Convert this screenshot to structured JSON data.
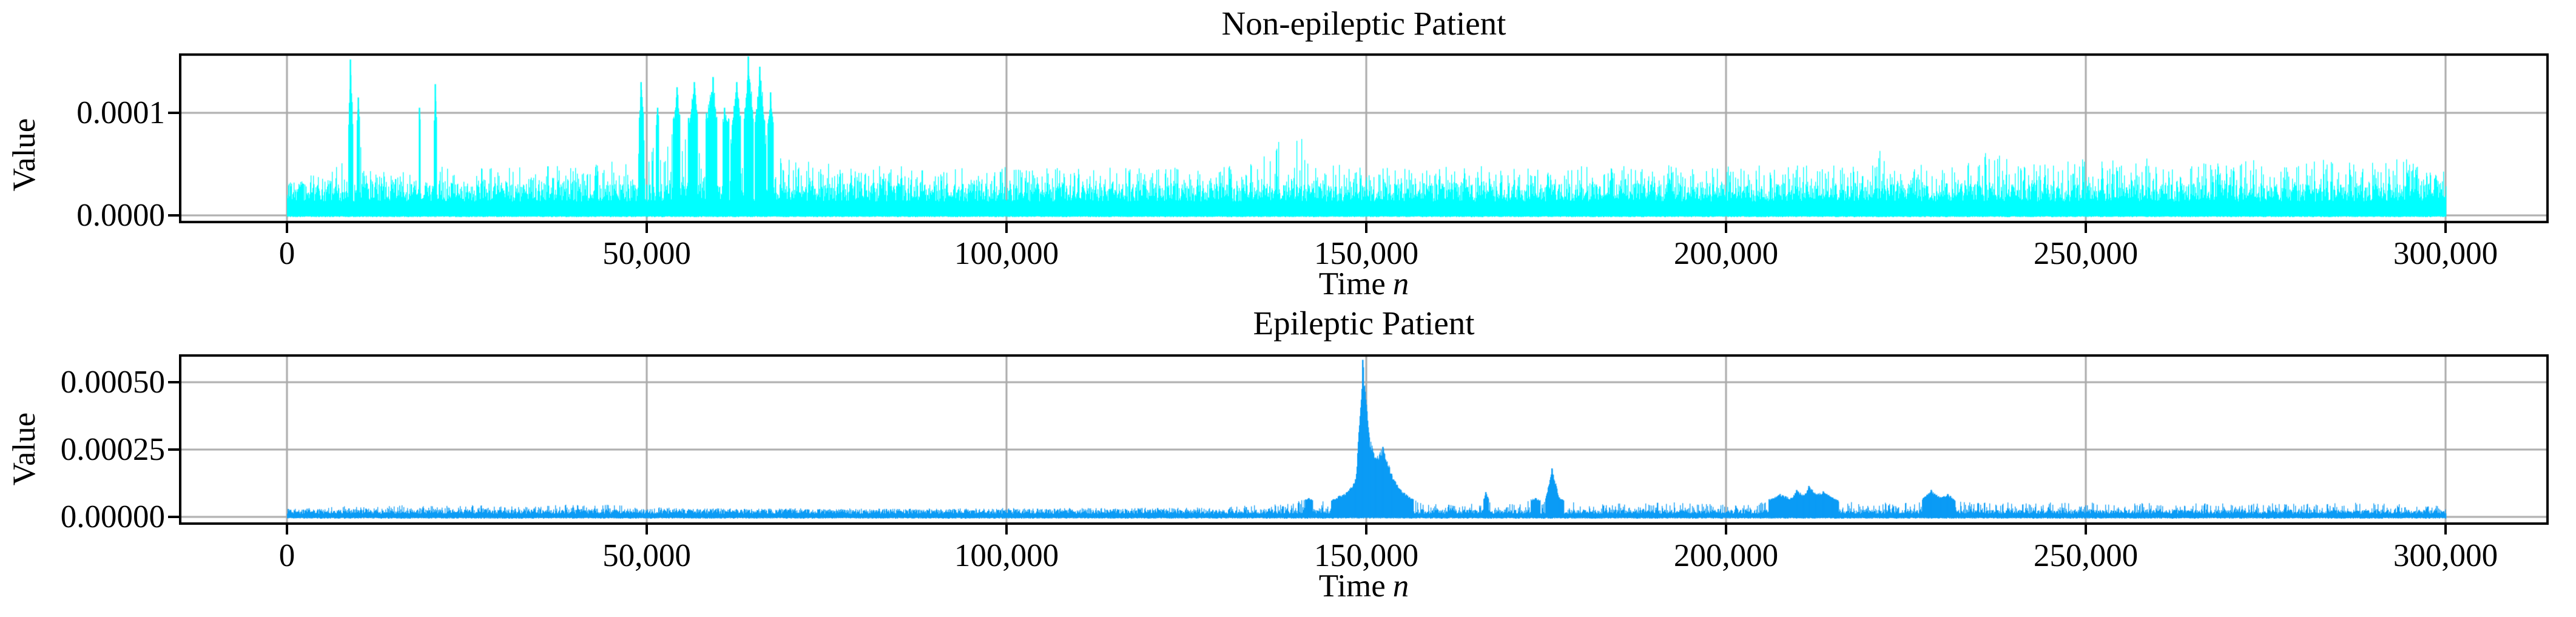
{
  "figure": {
    "background": "#ffffff"
  },
  "chart_data": [
    {
      "type": "line",
      "title": "Non-epileptic Patient",
      "xlabel_prefix": "Time",
      "xlabel_var": "n",
      "ylabel": "Value",
      "x_tick_values": [
        0,
        50000,
        100000,
        150000,
        200000,
        250000,
        300000
      ],
      "x_tick_labels": [
        "0",
        "50,000",
        "100,000",
        "150,000",
        "200,000",
        "250,000",
        "300,000"
      ],
      "y_tick_values": [
        0,
        0.0001
      ],
      "y_tick_labels": [
        "0.0000",
        "0.0001"
      ],
      "xlim": [
        -15000,
        314300
      ],
      "ylim": [
        -7.7e-06,
        0.000158
      ],
      "grid": true,
      "legend": "none",
      "signal_color": "#00FFFF",
      "grid_color": "#ababab",
      "spine_color": "#000000",
      "value_scale": 0.0001,
      "baseline_1e4": 0.3,
      "solid_above_1e4": 0.95,
      "envelope_1e4": [
        [
          0,
          0.42
        ],
        [
          2000,
          0.38
        ],
        [
          5000,
          0.42
        ],
        [
          8300,
          0.55
        ],
        [
          8800,
          1.52
        ],
        [
          9300,
          0.65
        ],
        [
          9900,
          1.15
        ],
        [
          10400,
          0.5
        ],
        [
          12000,
          0.45
        ],
        [
          14500,
          0.42
        ],
        [
          17900,
          0.5
        ],
        [
          18400,
          1.05
        ],
        [
          18900,
          0.5
        ],
        [
          20100,
          0.55
        ],
        [
          20600,
          1.28
        ],
        [
          21100,
          0.5
        ],
        [
          23000,
          0.46
        ],
        [
          26000,
          0.52
        ],
        [
          29000,
          0.46
        ],
        [
          32000,
          0.52
        ],
        [
          35000,
          0.47
        ],
        [
          38000,
          0.5
        ],
        [
          41000,
          0.46
        ],
        [
          44000,
          0.52
        ],
        [
          46500,
          0.56
        ],
        [
          48500,
          0.6
        ],
        [
          49200,
          1.3
        ],
        [
          49900,
          0.6
        ],
        [
          50800,
          0.8
        ],
        [
          51500,
          1.05
        ],
        [
          52300,
          0.6
        ],
        [
          53300,
          0.8
        ],
        [
          54200,
          1.25
        ],
        [
          55000,
          0.7
        ],
        [
          55800,
          0.95
        ],
        [
          56600,
          1.3
        ],
        [
          57400,
          0.7
        ],
        [
          58300,
          1.0
        ],
        [
          59200,
          1.35
        ],
        [
          60000,
          0.75
        ],
        [
          60800,
          1.05
        ],
        [
          61700,
          0.9
        ],
        [
          62500,
          1.3
        ],
        [
          63300,
          0.8
        ],
        [
          64100,
          1.55
        ],
        [
          64900,
          0.9
        ],
        [
          65700,
          1.45
        ],
        [
          66500,
          0.85
        ],
        [
          67200,
          1.2
        ],
        [
          68000,
          0.7
        ],
        [
          69000,
          0.6
        ],
        [
          70500,
          0.55
        ],
        [
          73000,
          0.52
        ],
        [
          76000,
          0.5
        ],
        [
          80000,
          0.46
        ],
        [
          84000,
          0.5
        ],
        [
          88000,
          0.45
        ],
        [
          92000,
          0.49
        ],
        [
          96000,
          0.45
        ],
        [
          100000,
          0.5
        ],
        [
          104000,
          0.46
        ],
        [
          108000,
          0.5
        ],
        [
          112000,
          0.45
        ],
        [
          116000,
          0.48
        ],
        [
          120000,
          0.46
        ],
        [
          124000,
          0.5
        ],
        [
          128000,
          0.46
        ],
        [
          132000,
          0.5
        ],
        [
          134500,
          0.55
        ],
        [
          136500,
          0.6
        ],
        [
          137500,
          0.8
        ],
        [
          138500,
          0.7
        ],
        [
          139500,
          0.92
        ],
        [
          140500,
          0.75
        ],
        [
          141500,
          0.85
        ],
        [
          142500,
          0.6
        ],
        [
          144000,
          0.55
        ],
        [
          146500,
          0.52
        ],
        [
          149000,
          0.5
        ],
        [
          152000,
          0.47
        ],
        [
          155000,
          0.5
        ],
        [
          158000,
          0.46
        ],
        [
          161000,
          0.49
        ],
        [
          164000,
          0.46
        ],
        [
          167700,
          0.5
        ],
        [
          168200,
          0.85
        ],
        [
          168700,
          0.5
        ],
        [
          171000,
          0.47
        ],
        [
          174000,
          0.5
        ],
        [
          177000,
          0.46
        ],
        [
          180000,
          0.49
        ],
        [
          183000,
          0.45
        ],
        [
          186000,
          0.49
        ],
        [
          189000,
          0.45
        ],
        [
          192000,
          0.5
        ],
        [
          195000,
          0.46
        ],
        [
          198000,
          0.5
        ],
        [
          201000,
          0.47
        ],
        [
          204000,
          0.51
        ],
        [
          207000,
          0.47
        ],
        [
          210000,
          0.5
        ],
        [
          213000,
          0.47
        ],
        [
          216000,
          0.52
        ],
        [
          219000,
          0.49
        ],
        [
          221000,
          0.5
        ],
        [
          221500,
          0.76
        ],
        [
          222000,
          0.5
        ],
        [
          224500,
          0.48
        ],
        [
          227000,
          0.5
        ],
        [
          229500,
          0.47
        ],
        [
          232000,
          0.52
        ],
        [
          234500,
          0.56
        ],
        [
          236000,
          0.62
        ],
        [
          238500,
          0.58
        ],
        [
          241000,
          0.5
        ],
        [
          243500,
          0.55
        ],
        [
          246000,
          0.5
        ],
        [
          248500,
          0.58
        ],
        [
          251000,
          0.52
        ],
        [
          253500,
          0.56
        ],
        [
          256000,
          0.5
        ],
        [
          258500,
          0.58
        ],
        [
          261000,
          0.52
        ],
        [
          263500,
          0.55
        ],
        [
          266000,
          0.5
        ],
        [
          268500,
          0.56
        ],
        [
          271000,
          0.5
        ],
        [
          273500,
          0.56
        ],
        [
          276000,
          0.52
        ],
        [
          278500,
          0.58
        ],
        [
          281000,
          0.52
        ],
        [
          283500,
          0.56
        ],
        [
          286000,
          0.52
        ],
        [
          288500,
          0.56
        ],
        [
          291000,
          0.52
        ],
        [
          293500,
          0.58
        ],
        [
          296000,
          0.5
        ],
        [
          298000,
          0.46
        ],
        [
          300000,
          0.44
        ]
      ]
    },
    {
      "type": "line",
      "title": "Epileptic Patient",
      "xlabel_prefix": "Time",
      "xlabel_var": "n",
      "ylabel": "Value",
      "x_tick_values": [
        0,
        50000,
        100000,
        150000,
        200000,
        250000,
        300000
      ],
      "x_tick_labels": [
        "0",
        "50,000",
        "100,000",
        "150,000",
        "200,000",
        "250,000",
        "300,000"
      ],
      "y_tick_values": [
        0,
        0.00025,
        0.0005
      ],
      "y_tick_labels": [
        "0.00000",
        "0.00025",
        "0.00050"
      ],
      "xlim": [
        -15000,
        314300
      ],
      "ylim": [
        -2.93e-05,
        0.000604
      ],
      "grid": true,
      "legend": "none",
      "signal_color": "#0A9BF5",
      "grid_color": "#ababab",
      "spine_color": "#000000",
      "value_scale": 0.0001,
      "baseline_1e4": 0.26,
      "solid_above_1e4": 0.66,
      "envelope_1e4": [
        [
          0,
          0.3
        ],
        [
          4000,
          0.34
        ],
        [
          8000,
          0.4
        ],
        [
          12000,
          0.36
        ],
        [
          16000,
          0.44
        ],
        [
          20000,
          0.4
        ],
        [
          24000,
          0.46
        ],
        [
          28000,
          0.42
        ],
        [
          31000,
          0.4
        ],
        [
          34000,
          0.38
        ],
        [
          37000,
          0.42
        ],
        [
          39000,
          0.55
        ],
        [
          39800,
          0.45
        ],
        [
          43000,
          0.42
        ],
        [
          46000,
          0.48
        ],
        [
          49000,
          0.4
        ],
        [
          52000,
          0.36
        ],
        [
          56000,
          0.33
        ],
        [
          60000,
          0.32
        ],
        [
          65000,
          0.3
        ],
        [
          70000,
          0.32
        ],
        [
          75000,
          0.3
        ],
        [
          80000,
          0.32
        ],
        [
          85000,
          0.3
        ],
        [
          90000,
          0.33
        ],
        [
          95000,
          0.31
        ],
        [
          100000,
          0.33
        ],
        [
          105000,
          0.31
        ],
        [
          110000,
          0.34
        ],
        [
          115000,
          0.32
        ],
        [
          120000,
          0.35
        ],
        [
          125000,
          0.34
        ],
        [
          129000,
          0.38
        ],
        [
          133000,
          0.42
        ],
        [
          137000,
          0.46
        ],
        [
          140000,
          0.55
        ],
        [
          142000,
          0.7
        ],
        [
          143500,
          0.58
        ],
        [
          145000,
          0.65
        ],
        [
          146200,
          0.78
        ],
        [
          147300,
          0.92
        ],
        [
          148500,
          1.4
        ],
        [
          149500,
          5.83
        ],
        [
          150400,
          2.95
        ],
        [
          151300,
          2.2
        ],
        [
          152300,
          2.6
        ],
        [
          153500,
          1.6
        ],
        [
          154800,
          1.0
        ],
        [
          156300,
          0.68
        ],
        [
          158000,
          0.52
        ],
        [
          160500,
          0.45
        ],
        [
          163500,
          0.48
        ],
        [
          166000,
          0.52
        ],
        [
          166600,
          0.92
        ],
        [
          167200,
          0.52
        ],
        [
          169500,
          0.5
        ],
        [
          171500,
          0.58
        ],
        [
          173500,
          0.7
        ],
        [
          174800,
          0.62
        ],
        [
          175800,
          1.8
        ],
        [
          176800,
          0.72
        ],
        [
          178500,
          0.56
        ],
        [
          181000,
          0.48
        ],
        [
          184000,
          0.52
        ],
        [
          187000,
          0.48
        ],
        [
          190000,
          0.53
        ],
        [
          193000,
          0.56
        ],
        [
          196000,
          0.5
        ],
        [
          199000,
          0.46
        ],
        [
          202000,
          0.5
        ],
        [
          205000,
          0.56
        ],
        [
          207500,
          0.85
        ],
        [
          209000,
          0.7
        ],
        [
          209800,
          1.0
        ],
        [
          210800,
          0.8
        ],
        [
          211500,
          1.15
        ],
        [
          212500,
          0.85
        ],
        [
          213500,
          0.95
        ],
        [
          214800,
          0.72
        ],
        [
          216500,
          0.58
        ],
        [
          219000,
          0.52
        ],
        [
          222000,
          0.54
        ],
        [
          225000,
          0.56
        ],
        [
          227000,
          0.62
        ],
        [
          228500,
          1.0
        ],
        [
          229800,
          0.72
        ],
        [
          230800,
          0.85
        ],
        [
          232000,
          0.62
        ],
        [
          234000,
          0.55
        ],
        [
          237000,
          0.52
        ],
        [
          240000,
          0.55
        ],
        [
          243000,
          0.51
        ],
        [
          246000,
          0.55
        ],
        [
          249000,
          0.51
        ],
        [
          252000,
          0.54
        ],
        [
          255000,
          0.5
        ],
        [
          258000,
          0.53
        ],
        [
          261000,
          0.5
        ],
        [
          264000,
          0.54
        ],
        [
          267000,
          0.51
        ],
        [
          270000,
          0.53
        ],
        [
          273000,
          0.49
        ],
        [
          276000,
          0.53
        ],
        [
          279000,
          0.5
        ],
        [
          282000,
          0.54
        ],
        [
          285000,
          0.51
        ],
        [
          288000,
          0.53
        ],
        [
          291000,
          0.5
        ],
        [
          294000,
          0.47
        ],
        [
          297000,
          0.44
        ],
        [
          300000,
          0.4
        ]
      ]
    }
  ]
}
